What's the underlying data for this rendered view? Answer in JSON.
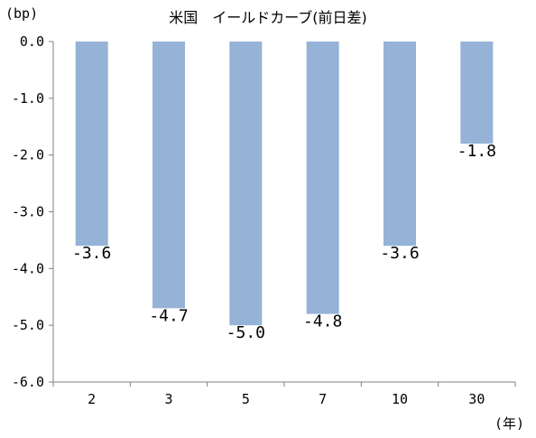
{
  "chart_data": {
    "type": "bar",
    "title": "米国　イールドカーブ(前日差)",
    "ylabel": "(bp)",
    "xlabel": "(年)",
    "categories": [
      "2",
      "3",
      "5",
      "7",
      "10",
      "30"
    ],
    "values": [
      -3.6,
      -4.7,
      -5.0,
      -4.8,
      -3.6,
      -1.8
    ],
    "value_labels": [
      "-3.6",
      "-4.7",
      "-5.0",
      "-4.8",
      "-3.6",
      "-1.8"
    ],
    "ylim": [
      -6.0,
      0.0
    ],
    "y_ticks": [
      "0.0",
      "-1.0",
      "-2.0",
      "-3.0",
      "-4.0",
      "-5.0",
      "-6.0"
    ],
    "grid": false,
    "bar_color": "#95b3d7"
  }
}
